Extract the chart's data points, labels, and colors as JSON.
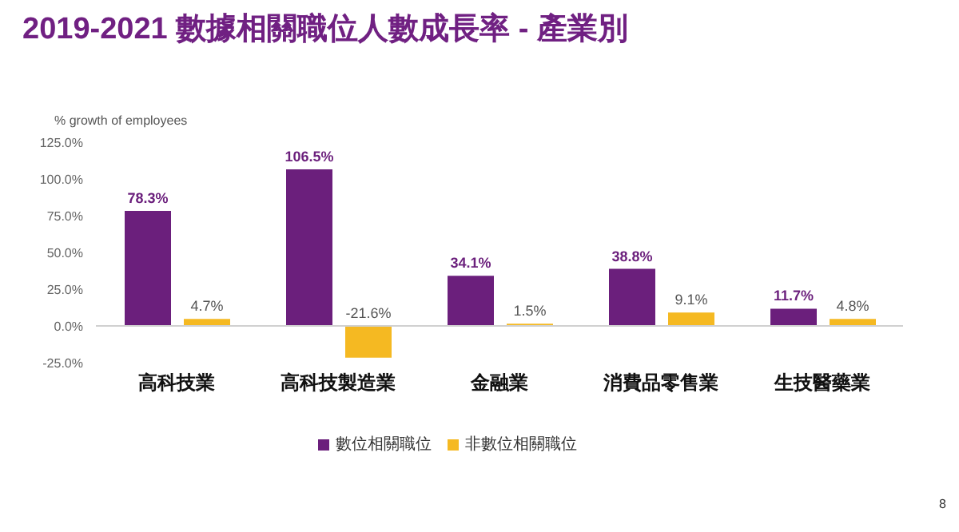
{
  "chart_data": {
    "type": "bar",
    "title": "2019-2021 數據相關職位人數成長率 - 產業別",
    "ylabel": "% growth of employees",
    "categories": [
      "高科技業",
      "高科技製造業",
      "金融業",
      "消費品零售業",
      "生技醫藥業"
    ],
    "series": [
      {
        "name": "數位相關職位",
        "color": "#6b1f7c",
        "values": [
          78.3,
          106.5,
          34.1,
          38.8,
          11.7
        ],
        "value_labels": [
          "78.3%",
          "106.5%",
          "34.1%",
          "38.8%",
          "11.7%"
        ]
      },
      {
        "name": "非數位相關職位",
        "color": "#f5b922",
        "values": [
          4.7,
          -21.6,
          1.5,
          9.1,
          4.8
        ],
        "value_labels": [
          "4.7%",
          "-21.6%",
          "1.5%",
          "9.1%",
          "4.8%"
        ]
      }
    ],
    "ylim": [
      -25,
      125
    ],
    "yticks": [
      {
        "value": -25,
        "label": "-25.0%"
      },
      {
        "value": 0,
        "label": "0.0%"
      },
      {
        "value": 25,
        "label": "25.0%"
      },
      {
        "value": 50,
        "label": "50.0%"
      },
      {
        "value": 75,
        "label": "75.0%"
      },
      {
        "value": 100,
        "label": "100.0%"
      },
      {
        "value": 125,
        "label": "125.0%"
      }
    ],
    "grid": false,
    "legend": "bottom",
    "annotations": [
      "8"
    ]
  }
}
